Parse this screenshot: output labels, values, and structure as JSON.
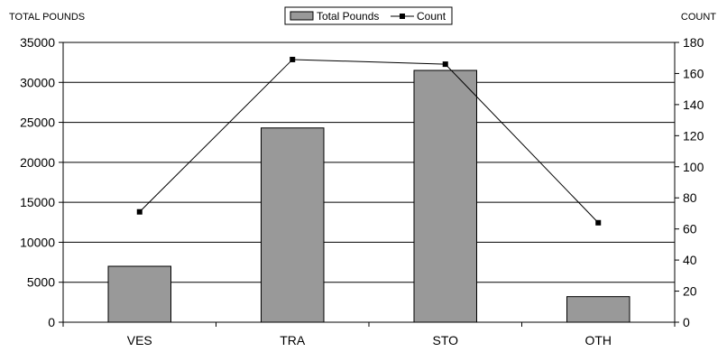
{
  "chart_data": {
    "type": "bar",
    "categories": [
      "VES",
      "TRA",
      "STO",
      "OTH"
    ],
    "series": [
      {
        "name": "Total Pounds",
        "type": "bar",
        "axis": "left",
        "values": [
          7000,
          24300,
          31500,
          3200
        ],
        "color": "#999999"
      },
      {
        "name": "Count",
        "type": "line",
        "axis": "right",
        "values": [
          71,
          169,
          166,
          64
        ],
        "color": "#000000"
      }
    ],
    "ylabel_left": "TOTAL POUNDS",
    "ylabel_right": "COUNT",
    "ylim_left": [
      0,
      35000
    ],
    "ylim_right": [
      0,
      180
    ],
    "yticks_left": [
      "0",
      "5000",
      "10000",
      "15000",
      "20000",
      "25000",
      "30000",
      "35000"
    ],
    "yticks_right": [
      "0",
      "20",
      "40",
      "60",
      "80",
      "100",
      "120",
      "140",
      "160",
      "180"
    ],
    "grid": true,
    "legend": {
      "position": "top-center",
      "items": [
        "Total Pounds",
        "Count"
      ]
    }
  }
}
